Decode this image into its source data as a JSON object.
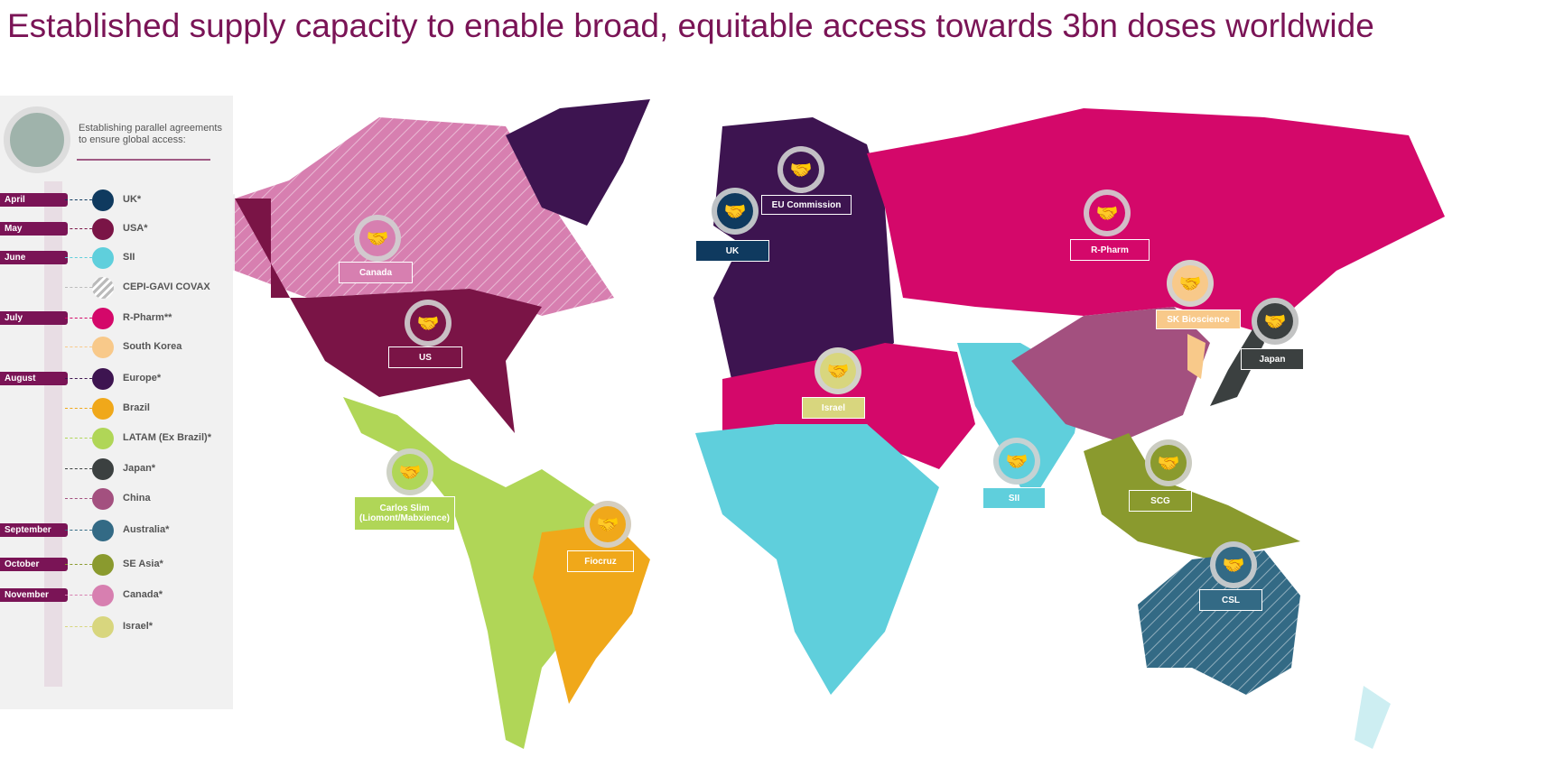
{
  "title": "Established supply capacity to enable broad, equitable access towards 3bn doses worldwide",
  "legend": {
    "intro": "Establishing parallel agreements to ensure global access:",
    "items": [
      {
        "month": "April",
        "label": "UK*",
        "color": "#0f3a5f"
      },
      {
        "month": "May",
        "label": "USA*",
        "color": "#7a1446"
      },
      {
        "month": "June",
        "label": "SII",
        "color": "#5fcfdc"
      },
      {
        "month": "",
        "label": "CEPI-GAVI COVAX",
        "color": "hatched"
      },
      {
        "month": "July",
        "label": "R-Pharm**",
        "color": "#d4086a"
      },
      {
        "month": "",
        "label": "South Korea",
        "color": "#f8c98a"
      },
      {
        "month": "August",
        "label": "Europe*",
        "color": "#3d1450"
      },
      {
        "month": "",
        "label": "Brazil",
        "color": "#f0a81a"
      },
      {
        "month": "",
        "label": "LATAM (Ex Brazil)*",
        "color": "#b0d657"
      },
      {
        "month": "",
        "label": "Japan*",
        "color": "#3b4040"
      },
      {
        "month": "",
        "label": "China",
        "color": "#a3507f"
      },
      {
        "month": "September",
        "label": "Australia*",
        "color": "#336a85"
      },
      {
        "month": "October",
        "label": "SE Asia*",
        "color": "#8a9a2e"
      },
      {
        "month": "November",
        "label": "Canada*",
        "color": "#d77fb0"
      },
      {
        "month": "",
        "label": "Israel*",
        "color": "#d8d67e"
      }
    ]
  },
  "markers": [
    {
      "label": "Canada",
      "color": "#d77fb0"
    },
    {
      "label": "US",
      "color": "#7a1446"
    },
    {
      "label": "UK",
      "color": "#0f3a5f"
    },
    {
      "label": "EU Commission",
      "color": "#3d1450"
    },
    {
      "label": "R-Pharm",
      "color": "#d4086a"
    },
    {
      "label": "SK Bioscience",
      "color": "#f8c98a"
    },
    {
      "label": "Japan",
      "color": "#3b4040"
    },
    {
      "label": "Israel",
      "color": "#d8d67e"
    },
    {
      "label": "SII",
      "color": "#5fcfdc"
    },
    {
      "label": "SCG",
      "color": "#8a9a2e"
    },
    {
      "label": "Carlos Slim (Liomont/Mabxience)",
      "color": "#b0d657"
    },
    {
      "label": "Fiocruz",
      "color": "#f0a81a"
    },
    {
      "label": "CSL",
      "color": "#336a85"
    }
  ],
  "icon": "handshake-icon"
}
